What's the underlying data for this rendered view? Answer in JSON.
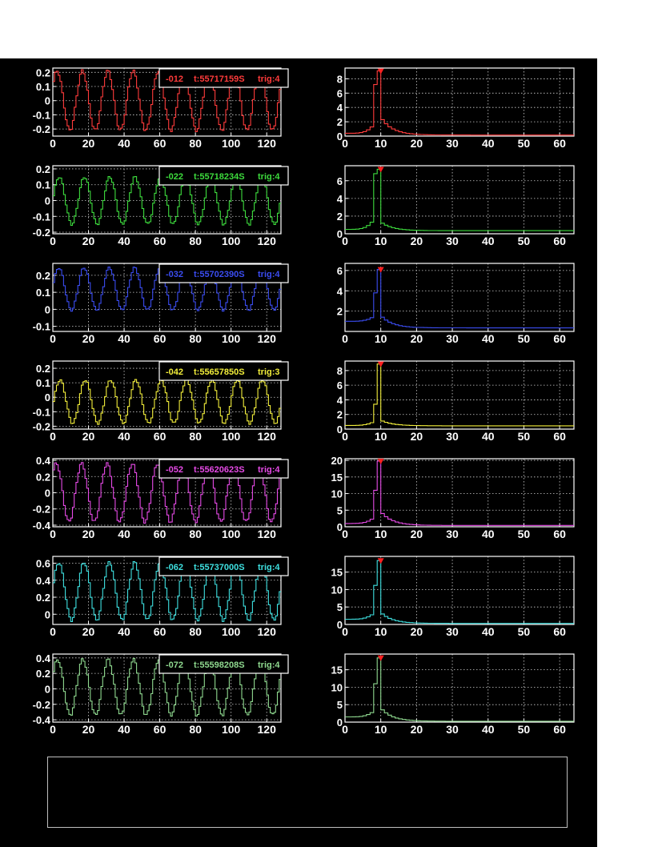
{
  "chart_data": [
    {
      "type": "line",
      "channel": "-012",
      "time": "t:55717159S",
      "trig": "trig:4",
      "color": "#ff3b3b",
      "waveform": {
        "xlim": [
          0,
          128
        ],
        "ylim": [
          -0.25,
          0.23
        ],
        "yticks": [
          0.2,
          0.1,
          0,
          -0.1,
          -0.2
        ],
        "ytick_labels": [
          "0.2",
          "0.1",
          "0",
          "-0.1",
          "-0.2"
        ],
        "xticks": [
          0,
          20,
          40,
          60,
          80,
          100,
          120
        ],
        "amplitude": 0.21,
        "offset": 0.0,
        "period": 14.2,
        "phase": 0.7
      },
      "spectrum": {
        "xlim": [
          0,
          64
        ],
        "ylim": [
          0,
          9.5
        ],
        "yticks": [
          0,
          2,
          4,
          6,
          8
        ],
        "ytick_labels": [
          "0",
          "2",
          "4",
          "6",
          "8"
        ],
        "xticks": [
          0,
          10,
          20,
          30,
          40,
          50,
          60
        ],
        "peak_x": 9.5,
        "peak": 9.1,
        "pre": 7.2,
        "post": 2.3,
        "base": 0.4,
        "tail": 0.15
      }
    },
    {
      "type": "line",
      "channel": "-022",
      "time": "t:55718234S",
      "trig": "trig:4",
      "color": "#3ddc3d",
      "waveform": {
        "xlim": [
          0,
          128
        ],
        "ylim": [
          -0.21,
          0.22
        ],
        "yticks": [
          0.2,
          0.1,
          0,
          -0.1,
          -0.2
        ],
        "ytick_labels": [
          "0.2",
          "0.1",
          "0",
          "-0.1",
          "-0.2"
        ],
        "xticks": [
          0,
          20,
          40,
          60,
          80,
          100,
          120
        ],
        "amplitude": 0.15,
        "offset": 0.0,
        "period": 14.2,
        "phase": 0.2
      },
      "spectrum": {
        "xlim": [
          0,
          64
        ],
        "ylim": [
          0,
          7.7
        ],
        "yticks": [
          0,
          2,
          4,
          6
        ],
        "ytick_labels": [
          "0",
          "2",
          "4",
          "6"
        ],
        "xticks": [
          0,
          10,
          20,
          30,
          40,
          50,
          60
        ],
        "peak_x": 9.5,
        "peak": 7.3,
        "pre": 6.8,
        "post": 1.2,
        "base": 0.5,
        "tail": 0.35
      }
    },
    {
      "type": "line",
      "channel": "-032",
      "time": "t:55702390S",
      "trig": "trig:4",
      "color": "#3a4cf0",
      "waveform": {
        "xlim": [
          0,
          128
        ],
        "ylim": [
          -0.13,
          0.27
        ],
        "yticks": [
          0.2,
          0.1,
          0,
          -0.1
        ],
        "ytick_labels": [
          "0.2",
          "0.1",
          "0",
          "-0.1"
        ],
        "xticks": [
          0,
          20,
          40,
          60,
          80,
          100,
          120
        ],
        "amplitude": 0.125,
        "offset": 0.12,
        "period": 14.2,
        "phase": 0.3
      },
      "spectrum": {
        "xlim": [
          0,
          64
        ],
        "ylim": [
          0,
          6.7
        ],
        "yticks": [
          2,
          4,
          6
        ],
        "ytick_labels": [
          "2",
          "4",
          "6"
        ],
        "xticks": [
          0,
          10,
          20,
          30,
          40,
          50,
          60
        ],
        "peak_x": 9.5,
        "peak": 6.1,
        "pre": 3.8,
        "post": 1.4,
        "base": 1.0,
        "tail": 0.35
      }
    },
    {
      "type": "line",
      "channel": "-042",
      "time": "t:55657850S",
      "trig": "trig:3",
      "color": "#f2ee3a",
      "waveform": {
        "xlim": [
          0,
          128
        ],
        "ylim": [
          -0.22,
          0.25
        ],
        "yticks": [
          0.2,
          0.1,
          0,
          -0.1,
          -0.2
        ],
        "ytick_labels": [
          "0.2",
          "0.1",
          "0",
          "-0.1",
          "-0.2"
        ],
        "xticks": [
          0,
          20,
          40,
          60,
          80,
          100,
          120
        ],
        "amplitude": 0.15,
        "offset": -0.03,
        "period": 14.2,
        "phase": 0.0
      },
      "spectrum": {
        "xlim": [
          0,
          64
        ],
        "ylim": [
          0,
          9.3
        ],
        "yticks": [
          0,
          2,
          4,
          6,
          8
        ],
        "ytick_labels": [
          "0",
          "2",
          "4",
          "6",
          "8"
        ],
        "xticks": [
          0,
          10,
          20,
          30,
          40,
          50,
          60
        ],
        "peak_x": 9.5,
        "peak": 8.9,
        "pre": 3.4,
        "post": 1.1,
        "base": 0.5,
        "tail": 0.45
      }
    },
    {
      "type": "line",
      "channel": "-052",
      "time": "t:55620623S",
      "trig": "trig:4",
      "color": "#e64ae6",
      "waveform": {
        "xlim": [
          0,
          128
        ],
        "ylim": [
          -0.42,
          0.42
        ],
        "yticks": [
          0.4,
          0.2,
          0,
          -0.2,
          -0.4
        ],
        "ytick_labels": [
          "0.4",
          "0.2",
          "0",
          "-0.2",
          "-0.4"
        ],
        "xticks": [
          0,
          20,
          40,
          60,
          80,
          100,
          120
        ],
        "amplitude": 0.36,
        "offset": 0.0,
        "period": 14.2,
        "phase": 0.9
      },
      "spectrum": {
        "xlim": [
          0,
          64
        ],
        "ylim": [
          0,
          20.5
        ],
        "yticks": [
          0,
          5,
          10,
          15,
          20
        ],
        "ytick_labels": [
          "0",
          "5",
          "10",
          "15",
          "20"
        ],
        "xticks": [
          0,
          10,
          20,
          30,
          40,
          50,
          60
        ],
        "peak_x": 9.5,
        "peak": 19.8,
        "pre": 11.0,
        "post": 4.0,
        "base": 1.0,
        "tail": 0.4
      }
    },
    {
      "type": "line",
      "channel": "-062",
      "time": "t:55737000S",
      "trig": "trig:4",
      "color": "#3ee0e0",
      "waveform": {
        "xlim": [
          0,
          128
        ],
        "ylim": [
          -0.12,
          0.68
        ],
        "yticks": [
          0.6,
          0.4,
          0.2,
          0
        ],
        "ytick_labels": [
          "0.6",
          "0.4",
          "0.2",
          "0"
        ],
        "xticks": [
          0,
          20,
          40,
          60,
          80,
          100,
          120
        ],
        "amplitude": 0.34,
        "offset": 0.27,
        "period": 14.2,
        "phase": 0.3
      },
      "spectrum": {
        "xlim": [
          0,
          64
        ],
        "ylim": [
          0,
          19.5
        ],
        "yticks": [
          0,
          5,
          10,
          15
        ],
        "ytick_labels": [
          "0",
          "5",
          "10",
          "15"
        ],
        "xticks": [
          0,
          10,
          20,
          30,
          40,
          50,
          60
        ],
        "peak_x": 9.5,
        "peak": 18.3,
        "pre": 11.2,
        "post": 3.0,
        "base": 1.5,
        "tail": 0.3
      }
    },
    {
      "type": "line",
      "channel": "-072",
      "time": "t:55598208S",
      "trig": "trig:4",
      "color": "#8fd98f",
      "waveform": {
        "xlim": [
          0,
          128
        ],
        "ylim": [
          -0.43,
          0.45
        ],
        "yticks": [
          0.4,
          0.2,
          0,
          -0.2,
          -0.4
        ],
        "ytick_labels": [
          "0.4",
          "0.2",
          "0",
          "-0.2",
          "-0.4"
        ],
        "xticks": [
          0,
          20,
          40,
          60,
          80,
          100,
          120
        ],
        "amplitude": 0.36,
        "offset": 0.02,
        "period": 14.2,
        "phase": 0.6
      },
      "spectrum": {
        "xlim": [
          0,
          64
        ],
        "ylim": [
          0,
          19.5
        ],
        "yticks": [
          0,
          5,
          10,
          15
        ],
        "ytick_labels": [
          "0",
          "5",
          "10",
          "15"
        ],
        "xticks": [
          0,
          10,
          20,
          30,
          40,
          50,
          60
        ],
        "peak_x": 9.5,
        "peak": 18.4,
        "pre": 11.0,
        "post": 3.5,
        "base": 1.5,
        "tail": 0.25
      }
    }
  ],
  "colors": {
    "background": "#000000",
    "frame": "#ffffff",
    "grid": "#cfcfcf",
    "marker": "#ff2020",
    "status_box_border": "#bfbfbf"
  }
}
